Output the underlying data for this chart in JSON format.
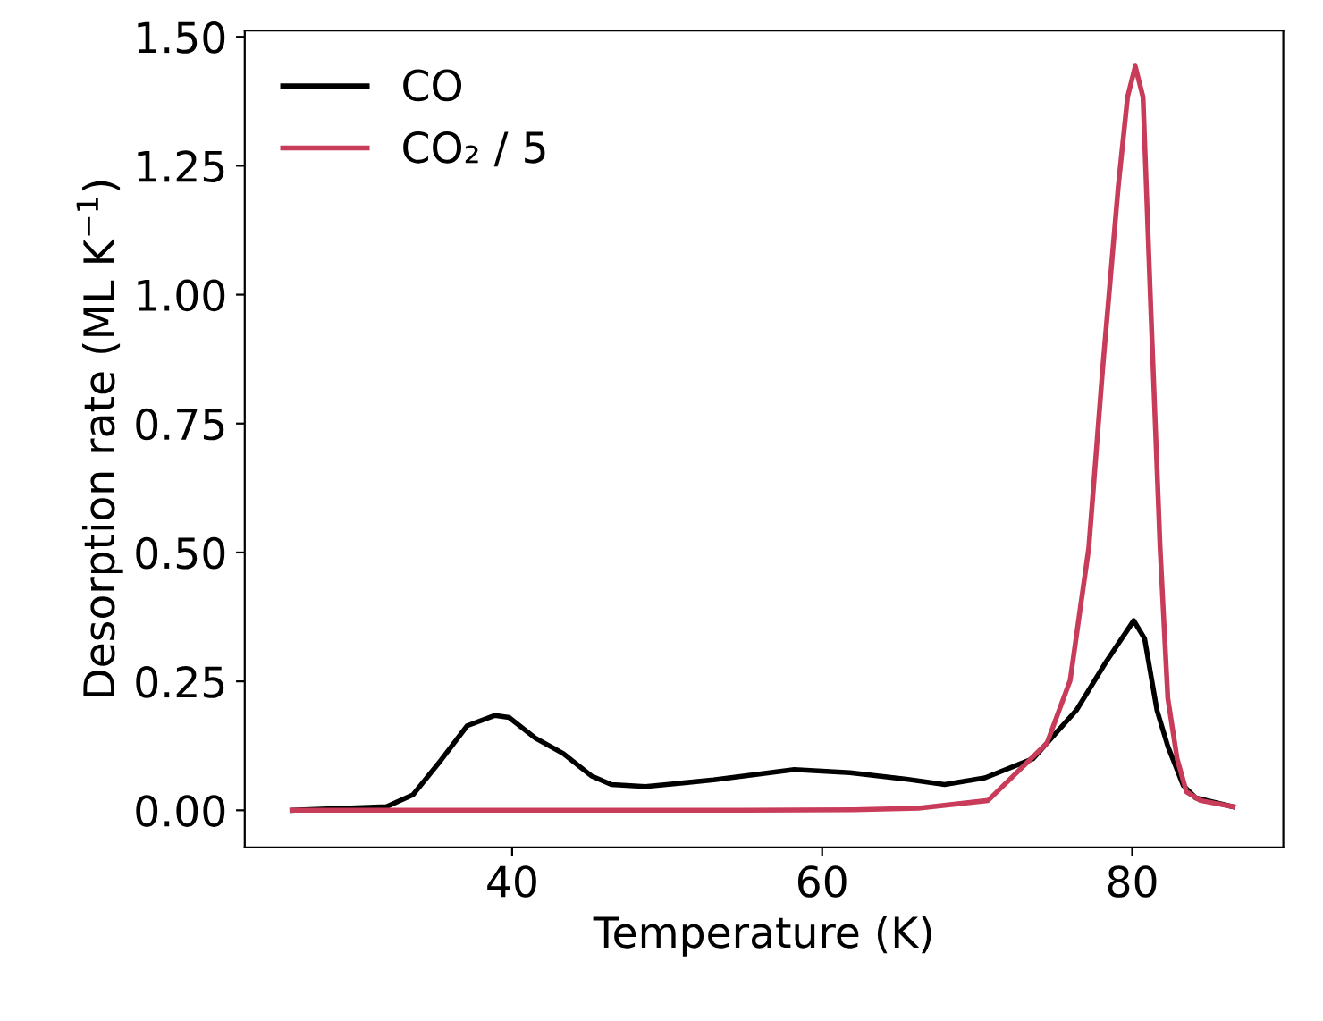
{
  "chart_data": {
    "type": "line",
    "xlabel": "Temperature (K)",
    "ylabel": "Desorption rate (ML K$^{−1}$)",
    "xlim": [
      22.75,
      89.75
    ],
    "ylim": [
      -0.072,
      1.512
    ],
    "xticks": [
      40,
      60,
      80
    ],
    "yticks": [
      {
        "value": 0,
        "label": "0.00"
      },
      {
        "value": 0.25,
        "label": "0.25"
      },
      {
        "value": 0.5,
        "label": "0.50"
      },
      {
        "value": 0.75,
        "label": "0.75"
      },
      {
        "value": 1.0,
        "label": "1.00"
      },
      {
        "value": 1.25,
        "label": "1.25"
      },
      {
        "value": 1.5,
        "label": "1.50"
      }
    ],
    "grid": false,
    "legend": "top left",
    "marker": "none",
    "line_style": "solid",
    "series": [
      {
        "name": "CO",
        "color": "#000000",
        "x": [
          25.8,
          31.9,
          33.6,
          35.4,
          37.1,
          38.9,
          39.8,
          41.5,
          43.3,
          45.1,
          46.4,
          48.6,
          53.0,
          58.2,
          61.8,
          65.3,
          67.9,
          70.5,
          73.6,
          76.4,
          78.3,
          80.1,
          80.8,
          81.6,
          82.3,
          83.3,
          84.1,
          86.5
        ],
        "values": [
          0,
          0.007,
          0.03,
          0.097,
          0.164,
          0.184,
          0.18,
          0.14,
          0.11,
          0.067,
          0.05,
          0.046,
          0.059,
          0.079,
          0.073,
          0.061,
          0.05,
          0.063,
          0.1,
          0.194,
          0.287,
          0.368,
          0.333,
          0.194,
          0.124,
          0.048,
          0.024,
          0.007
        ]
      },
      {
        "name": "CO₂ / 5",
        "color": "#c83c5a",
        "x": [
          25.8,
          40.0,
          55.0,
          62.0,
          66.2,
          70.7,
          74.5,
          76.0,
          77.2,
          78.1,
          79.1,
          79.7,
          80.2,
          80.7,
          81.2,
          81.8,
          82.3,
          82.9,
          83.5,
          84.4,
          86.5
        ],
        "values": [
          0,
          0,
          0,
          0.001,
          0.004,
          0.019,
          0.13,
          0.252,
          0.509,
          0.858,
          1.209,
          1.383,
          1.443,
          1.383,
          0.975,
          0.509,
          0.217,
          0.1,
          0.036,
          0.019,
          0.007
        ]
      }
    ]
  }
}
